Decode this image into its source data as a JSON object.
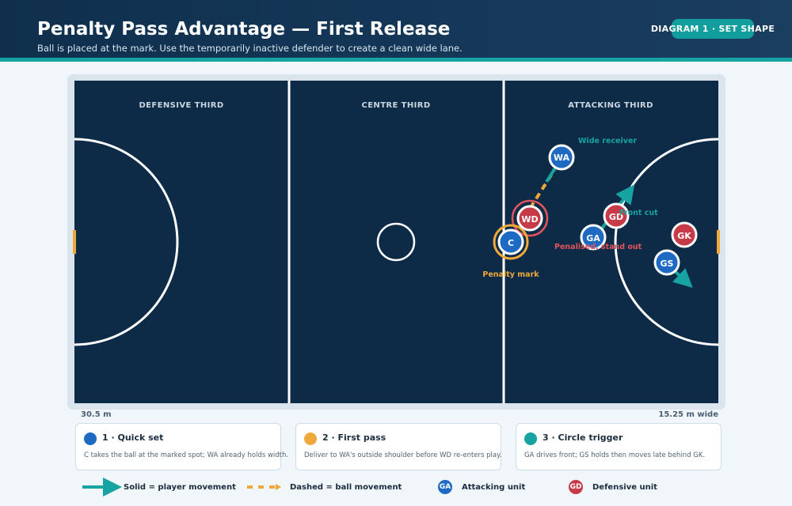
{
  "header": {
    "title": "Penalty Pass Advantage — First Release",
    "subtitle": "Ball is placed at the mark. Use the temporarily inactive defender to create a clean wide lane.",
    "badge": "DIAGRAM 1 · SET SHAPE"
  },
  "court": {
    "thirds": [
      "DEFENSIVE THIRD",
      "CENTRE THIRD",
      "ATTACKING THIRD"
    ],
    "length_label": "30.5 m",
    "width_label": "15.25 m wide"
  },
  "players": {
    "wa": "WA",
    "wd": "WD",
    "c": "C",
    "ga": "GA",
    "gd": "GD",
    "gk": "GK",
    "gs": "GS"
  },
  "annotations": {
    "wide_receiver": "Wide receiver",
    "front_cut": "Front cut",
    "penalised": "Penalised, stand out",
    "penalty_mark": "Penalty mark"
  },
  "cards": [
    {
      "title": "1 · Quick set",
      "text": "C takes the ball at the marked spot; WA already holds width."
    },
    {
      "title": "2 · First pass",
      "text": "Deliver to WA's outside shoulder before WD re-enters play."
    },
    {
      "title": "3 · Circle trigger",
      "text": "GA drives front; GS holds then moves late behind GK."
    }
  ],
  "legend": {
    "solid": "Solid = player movement",
    "dashed": "Dashed = ball movement",
    "attack_chip": "GA",
    "attack": "Attacking unit",
    "defence_chip": "GD",
    "defence": "Defensive unit"
  },
  "colors": {
    "court": "#0d2a47",
    "attack": "#1e6ac2",
    "defence": "#c73a48",
    "movement": "#17a3a1",
    "ball": "#eea93a",
    "penalty": "#e0545c"
  }
}
